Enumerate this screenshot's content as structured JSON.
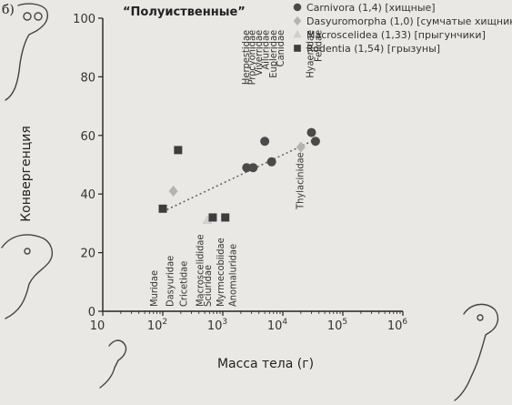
{
  "panel_label": "б)",
  "colors": {
    "carnivora": "#4a4a4a",
    "dasyuromorpha": "#b3b3b3",
    "macroscelidea": "#cfcfcf",
    "rodentia": "#3d3d3d",
    "trend": "#666666"
  },
  "chart_data": {
    "type": "scatter",
    "title": "“Полуиственные”",
    "xlabel": "Масса тела (г)",
    "ylabel": "Конвергенция",
    "xscale": "log",
    "xlim": [
      10,
      1000000
    ],
    "ylim": [
      0,
      100
    ],
    "x_ticks": [
      {
        "value": 10,
        "base": "10",
        "exp": ""
      },
      {
        "value": 100,
        "base": "10",
        "exp": "2"
      },
      {
        "value": 1000,
        "base": "10",
        "exp": "3"
      },
      {
        "value": 10000,
        "base": "10",
        "exp": "4"
      },
      {
        "value": 100000,
        "base": "10",
        "exp": "5"
      },
      {
        "value": 1000000,
        "base": "10",
        "exp": "6"
      }
    ],
    "y_ticks": [
      "0",
      "20",
      "40",
      "60",
      "80",
      "100"
    ],
    "legend_position": "top-right",
    "grid": false,
    "series": [
      {
        "name": "Carnivora (1,4) [хищные]",
        "marker": "circle",
        "points": [
          {
            "x": 2500,
            "y": 49
          },
          {
            "x": 3200,
            "y": 49
          },
          {
            "x": 5000,
            "y": 58
          },
          {
            "x": 6500,
            "y": 51
          },
          {
            "x": 30000,
            "y": 61
          },
          {
            "x": 35000,
            "y": 58
          }
        ]
      },
      {
        "name": "Dasyuromorpha (1,0) [сумчатые хищники]",
        "marker": "diamond",
        "points": [
          {
            "x": 150,
            "y": 41
          },
          {
            "x": 20000,
            "y": 56
          }
        ]
      },
      {
        "name": "Macroscelidea (1,33) [прыгунчики]",
        "marker": "triangle",
        "points": [
          {
            "x": 550,
            "y": 31
          }
        ]
      },
      {
        "name": "Rodentia (1,54) [грызуны]",
        "marker": "square",
        "points": [
          {
            "x": 100,
            "y": 35
          },
          {
            "x": 180,
            "y": 55
          },
          {
            "x": 680,
            "y": 32
          },
          {
            "x": 1100,
            "y": 32
          }
        ]
      }
    ],
    "trendline": {
      "x": [
        100,
        30000
      ],
      "y": [
        34,
        58
      ]
    },
    "point_labels_low": [
      {
        "text": "Muridae",
        "x": 70
      },
      {
        "text": "Dasyuridae",
        "x": 130
      },
      {
        "text": "Cricetidae",
        "x": 220
      },
      {
        "text": "Macroscelididae",
        "x": 410
      },
      {
        "text": "Sciuridae",
        "x": 550
      },
      {
        "text": "Myrmecobiidae",
        "x": 900
      },
      {
        "text": "Anomaluridae",
        "x": 1450
      }
    ],
    "point_labels_high": [
      {
        "text": "Herpestidae",
        "x": 2400
      },
      {
        "text": "Procyonidae",
        "x": 3000
      },
      {
        "text": "Viverridae",
        "x": 3900
      },
      {
        "text": "Ailuridae",
        "x": 5100
      },
      {
        "text": "Eupleridae",
        "x": 6800
      },
      {
        "text": "Canidae",
        "x": 9000
      },
      {
        "text": "Hyaenidae",
        "x": 28000
      },
      {
        "text": "Felidae",
        "x": 38000
      }
    ],
    "point_labels_mid": [
      {
        "text": "Thylacinidae",
        "x": 19000,
        "y": 58
      }
    ]
  }
}
